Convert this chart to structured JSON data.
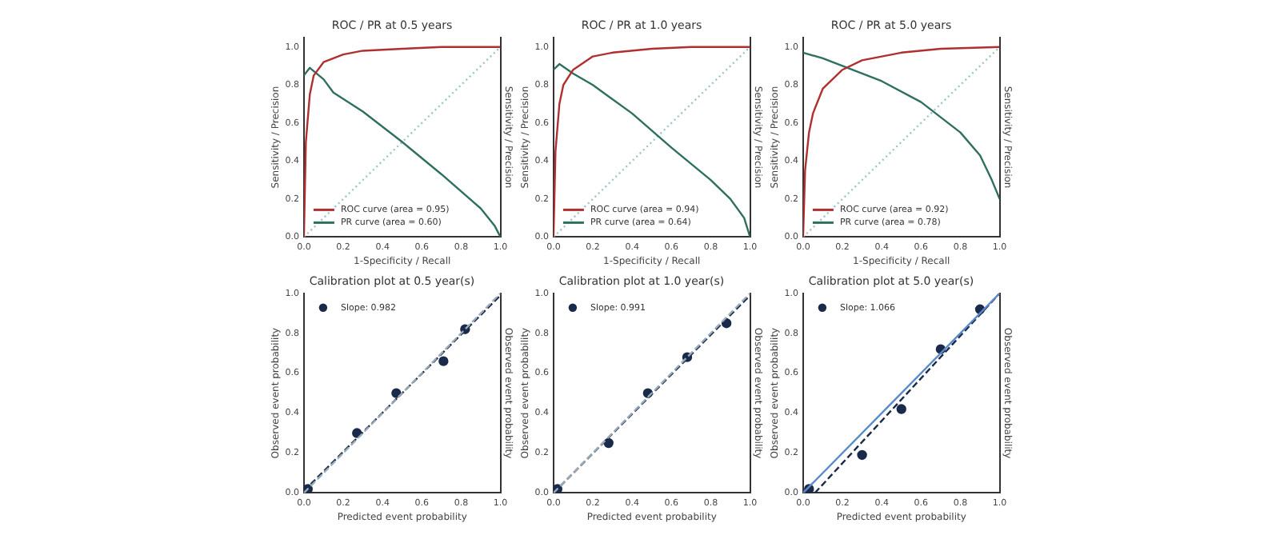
{
  "chart_data": [
    {
      "type": "line",
      "title": "ROC / PR at 0.5 years",
      "xlabel": "1-Specificity / Recall",
      "ylabel": "Sensitivity / Precision",
      "y2label": "Sensitivity / Precision",
      "xlim": [
        0,
        1
      ],
      "ylim": [
        0,
        1.05
      ],
      "xticks": [
        {
          "value": 0,
          "label": "0.0"
        },
        {
          "value": 0.2,
          "label": "0.2"
        },
        {
          "value": 0.4,
          "label": "0.4"
        },
        {
          "value": 0.6,
          "label": "0.6"
        },
        {
          "value": 0.8,
          "label": "0.8"
        },
        {
          "value": 1,
          "label": "1.0"
        }
      ],
      "yticks": [
        {
          "value": 0,
          "label": "0.0"
        },
        {
          "value": 0.2,
          "label": "0.2"
        },
        {
          "value": 0.4,
          "label": "0.4"
        },
        {
          "value": 0.6,
          "label": "0.6"
        },
        {
          "value": 0.8,
          "label": "0.8"
        },
        {
          "value": 1,
          "label": "1.0"
        }
      ],
      "legend": "bottom left",
      "grid": false,
      "series": [
        {
          "name": "ROC curve (area = 0.95)",
          "color": "#b03030",
          "x": [
            0,
            0.01,
            0.03,
            0.05,
            0.1,
            0.2,
            0.3,
            0.5,
            0.7,
            1
          ],
          "values": [
            0,
            0.5,
            0.75,
            0.85,
            0.92,
            0.96,
            0.98,
            0.99,
            1,
            1
          ]
        },
        {
          "name": "PR curve (area = 0.60)",
          "color": "#2f6f5f",
          "x": [
            0,
            0.03,
            0.1,
            0.15,
            0.3,
            0.5,
            0.7,
            0.9,
            0.97,
            1
          ],
          "values": [
            0.85,
            0.89,
            0.83,
            0.76,
            0.66,
            0.5,
            0.33,
            0.15,
            0.06,
            0
          ]
        },
        {
          "color": "#9cc4c4",
          "line_style": "dotted",
          "x": [
            0,
            1
          ],
          "values": [
            0,
            1
          ]
        }
      ]
    },
    {
      "type": "line",
      "title": "ROC / PR at 1.0 years",
      "xlabel": "1-Specificity / Recall",
      "ylabel": "Sensitivity / Precision",
      "y2label": "Sensitivity / Precision",
      "xlim": [
        0,
        1
      ],
      "ylim": [
        0,
        1.05
      ],
      "xticks": [
        {
          "value": 0,
          "label": "0.0"
        },
        {
          "value": 0.2,
          "label": "0.2"
        },
        {
          "value": 0.4,
          "label": "0.4"
        },
        {
          "value": 0.6,
          "label": "0.6"
        },
        {
          "value": 0.8,
          "label": "0.8"
        },
        {
          "value": 1,
          "label": "1.0"
        }
      ],
      "yticks": [
        {
          "value": 0,
          "label": "0.0"
        },
        {
          "value": 0.2,
          "label": "0.2"
        },
        {
          "value": 0.4,
          "label": "0.4"
        },
        {
          "value": 0.6,
          "label": "0.6"
        },
        {
          "value": 0.8,
          "label": "0.8"
        },
        {
          "value": 1,
          "label": "1.0"
        }
      ],
      "legend": "bottom left",
      "grid": false,
      "series": [
        {
          "name": "ROC curve (area = 0.94)",
          "color": "#b03030",
          "x": [
            0,
            0.01,
            0.03,
            0.05,
            0.1,
            0.2,
            0.3,
            0.5,
            0.7,
            1
          ],
          "values": [
            0,
            0.45,
            0.7,
            0.8,
            0.88,
            0.95,
            0.97,
            0.99,
            1,
            1
          ]
        },
        {
          "name": "PR curve (area = 0.64)",
          "color": "#2f6f5f",
          "x": [
            0,
            0.03,
            0.1,
            0.2,
            0.4,
            0.6,
            0.8,
            0.9,
            0.97,
            1
          ],
          "values": [
            0.88,
            0.91,
            0.86,
            0.8,
            0.65,
            0.47,
            0.3,
            0.2,
            0.1,
            0
          ]
        },
        {
          "color": "#9cc4c4",
          "line_style": "dotted",
          "x": [
            0,
            1
          ],
          "values": [
            0,
            1
          ]
        }
      ]
    },
    {
      "type": "line",
      "title": "ROC / PR at 5.0 years",
      "xlabel": "1-Specificity / Recall",
      "ylabel": "Sensitivity / Precision",
      "y2label": "Sensitivity / Precision",
      "xlim": [
        0,
        1
      ],
      "ylim": [
        0,
        1.05
      ],
      "xticks": [
        {
          "value": 0,
          "label": "0.0"
        },
        {
          "value": 0.2,
          "label": "0.2"
        },
        {
          "value": 0.4,
          "label": "0.4"
        },
        {
          "value": 0.6,
          "label": "0.6"
        },
        {
          "value": 0.8,
          "label": "0.8"
        },
        {
          "value": 1,
          "label": "1.0"
        }
      ],
      "yticks": [
        {
          "value": 0,
          "label": "0.0"
        },
        {
          "value": 0.2,
          "label": "0.2"
        },
        {
          "value": 0.4,
          "label": "0.4"
        },
        {
          "value": 0.6,
          "label": "0.6"
        },
        {
          "value": 0.8,
          "label": "0.8"
        },
        {
          "value": 1,
          "label": "1.0"
        }
      ],
      "legend": "bottom left",
      "grid": false,
      "series": [
        {
          "name": "ROC curve (area = 0.92)",
          "color": "#b03030",
          "x": [
            0,
            0.01,
            0.03,
            0.05,
            0.1,
            0.2,
            0.3,
            0.5,
            0.7,
            1
          ],
          "values": [
            0,
            0.35,
            0.55,
            0.65,
            0.78,
            0.88,
            0.93,
            0.97,
            0.99,
            1
          ]
        },
        {
          "name": "PR curve (area = 0.78)",
          "color": "#2f6f5f",
          "x": [
            0,
            0.1,
            0.2,
            0.4,
            0.6,
            0.8,
            0.9,
            0.96,
            1
          ],
          "values": [
            0.97,
            0.94,
            0.9,
            0.82,
            0.71,
            0.55,
            0.43,
            0.3,
            0.2
          ]
        },
        {
          "color": "#9cc4c4",
          "line_style": "dotted",
          "x": [
            0,
            1
          ],
          "values": [
            0,
            1
          ]
        }
      ]
    },
    {
      "type": "scatter",
      "title": "Calibration plot at 0.5 year(s)",
      "xlabel": "Predicted event probability",
      "ylabel": "Observed event probability",
      "y2label": "Observed event probability",
      "xlim": [
        0,
        1
      ],
      "ylim": [
        0,
        1
      ],
      "xticks": [
        {
          "value": 0,
          "label": "0.0"
        },
        {
          "value": 0.2,
          "label": "0.2"
        },
        {
          "value": 0.4,
          "label": "0.4"
        },
        {
          "value": 0.6,
          "label": "0.6"
        },
        {
          "value": 0.8,
          "label": "0.8"
        },
        {
          "value": 1,
          "label": "1.0"
        }
      ],
      "yticks": [
        {
          "value": 0,
          "label": "0.0"
        },
        {
          "value": 0.2,
          "label": "0.2"
        },
        {
          "value": 0.4,
          "label": "0.4"
        },
        {
          "value": 0.6,
          "label": "0.6"
        },
        {
          "value": 0.8,
          "label": "0.8"
        },
        {
          "value": 1,
          "label": "1.0"
        }
      ],
      "legend": "top left",
      "grid": false,
      "series": [
        {
          "type": "line",
          "color": "#9aaab8",
          "line_style": "dashed",
          "x": [
            0,
            1
          ],
          "values": [
            0,
            1
          ]
        },
        {
          "type": "line",
          "color": "#1a2a4a",
          "line_style": "dashed",
          "x": [
            0,
            1
          ],
          "values": [
            0.01,
            0.99
          ]
        },
        {
          "name": "Slope: 0.982",
          "marker": "circle",
          "color": "#1a2a4a",
          "x": [
            0.02,
            0.27,
            0.47,
            0.71,
            0.82
          ],
          "values": [
            0.02,
            0.3,
            0.5,
            0.66,
            0.82
          ]
        }
      ]
    },
    {
      "type": "scatter",
      "title": "Calibration plot at 1.0 year(s)",
      "xlabel": "Predicted event probability",
      "ylabel": "Observed event probability",
      "y2label": "Observed event probability",
      "xlim": [
        0,
        1
      ],
      "ylim": [
        0,
        1
      ],
      "xticks": [
        {
          "value": 0,
          "label": "0.0"
        },
        {
          "value": 0.2,
          "label": "0.2"
        },
        {
          "value": 0.4,
          "label": "0.4"
        },
        {
          "value": 0.6,
          "label": "0.6"
        },
        {
          "value": 0.8,
          "label": "0.8"
        },
        {
          "value": 1,
          "label": "1.0"
        }
      ],
      "yticks": [
        {
          "value": 0,
          "label": "0.0"
        },
        {
          "value": 0.2,
          "label": "0.2"
        },
        {
          "value": 0.4,
          "label": "0.4"
        },
        {
          "value": 0.6,
          "label": "0.6"
        },
        {
          "value": 0.8,
          "label": "0.8"
        },
        {
          "value": 1,
          "label": "1.0"
        }
      ],
      "legend": "top left",
      "grid": false,
      "series": [
        {
          "type": "line",
          "color": "#9aaab8",
          "line_style": "dashed",
          "x": [
            0,
            1
          ],
          "values": [
            0,
            1
          ]
        },
        {
          "type": "line",
          "color": "#1a2a4a",
          "line_style": "dashed",
          "x": [
            0,
            1
          ],
          "values": [
            0,
            0.99
          ]
        },
        {
          "name": "Slope: 0.991",
          "marker": "circle",
          "color": "#1a2a4a",
          "x": [
            0.02,
            0.28,
            0.48,
            0.68,
            0.88
          ],
          "values": [
            0.02,
            0.25,
            0.5,
            0.68,
            0.85
          ]
        }
      ]
    },
    {
      "type": "scatter",
      "title": "Calibration plot at 5.0 year(s)",
      "xlabel": "Predicted event probability",
      "ylabel": "Observed event probability",
      "y2label": "Observed event probability",
      "xlim": [
        0,
        1
      ],
      "ylim": [
        0,
        1
      ],
      "xticks": [
        {
          "value": 0,
          "label": "0.0"
        },
        {
          "value": 0.2,
          "label": "0.2"
        },
        {
          "value": 0.4,
          "label": "0.4"
        },
        {
          "value": 0.6,
          "label": "0.6"
        },
        {
          "value": 0.8,
          "label": "0.8"
        },
        {
          "value": 1,
          "label": "1.0"
        }
      ],
      "yticks": [
        {
          "value": 0,
          "label": "0.0"
        },
        {
          "value": 0.2,
          "label": "0.2"
        },
        {
          "value": 0.4,
          "label": "0.4"
        },
        {
          "value": 0.6,
          "label": "0.6"
        },
        {
          "value": 0.8,
          "label": "0.8"
        },
        {
          "value": 1,
          "label": "1.0"
        }
      ],
      "legend": "top left",
      "grid": false,
      "series": [
        {
          "type": "line",
          "color": "#5a8ac8",
          "line_style": "solid",
          "x": [
            0,
            1
          ],
          "values": [
            0,
            1
          ]
        },
        {
          "type": "line",
          "color": "#1a2a4a",
          "line_style": "dashed",
          "x": [
            0.06,
            1
          ],
          "values": [
            0,
            1
          ]
        },
        {
          "name": "Slope: 1.066",
          "marker": "circle",
          "color": "#1a2a4a",
          "x": [
            0.03,
            0.3,
            0.5,
            0.7,
            0.9
          ],
          "values": [
            0.02,
            0.19,
            0.42,
            0.72,
            0.92
          ]
        }
      ]
    }
  ]
}
